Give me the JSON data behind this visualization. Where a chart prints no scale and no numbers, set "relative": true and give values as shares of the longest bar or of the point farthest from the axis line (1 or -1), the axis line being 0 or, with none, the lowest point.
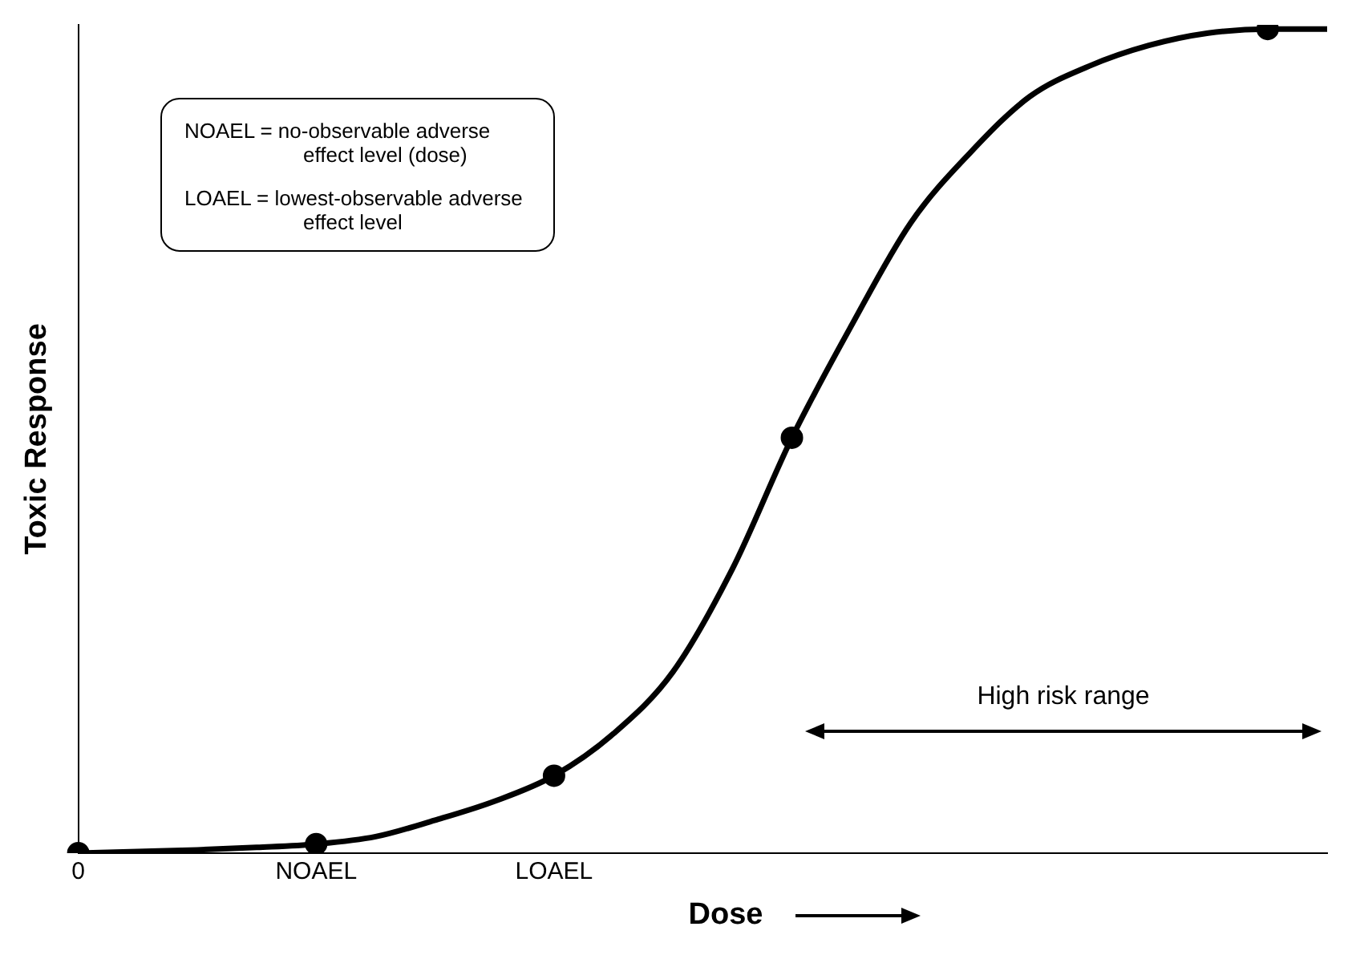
{
  "chart_data": {
    "type": "line",
    "xlabel": "Dose",
    "ylabel": "Toxic Response",
    "relative": true,
    "categories": [
      "0",
      null,
      null,
      null,
      "NOAEL",
      null,
      null,
      null,
      "LOAEL",
      null,
      null,
      null,
      null,
      null,
      null,
      null,
      null,
      null,
      null,
      null,
      null,
      null
    ],
    "tick_labels": "x",
    "grid": false,
    "legend": false,
    "series": [
      {
        "color": "#000000",
        "marker": "none",
        "values": [
          0,
          0.002,
          0.004,
          0.007,
          0.011,
          0.02,
          0.04,
          0.063,
          0.094,
          0.145,
          0.22,
          0.345,
          0.504,
          0.64,
          0.765,
          0.85,
          0.918,
          0.955,
          0.98,
          0.995,
          1,
          1
        ]
      },
      {
        "type": "scatter",
        "color": "#000000",
        "marker": "circle",
        "values": [
          0,
          null,
          null,
          null,
          0.011,
          null,
          null,
          null,
          0.094,
          null,
          null,
          null,
          0.504,
          null,
          null,
          null,
          null,
          null,
          null,
          null,
          1,
          null
        ]
      }
    ],
    "annotations": [
      "NOAEL = no-observable adverse effect level (dose)",
      "LOAEL = lowest-observable adverse effect level",
      {
        "text": "High risk range"
      }
    ]
  }
}
